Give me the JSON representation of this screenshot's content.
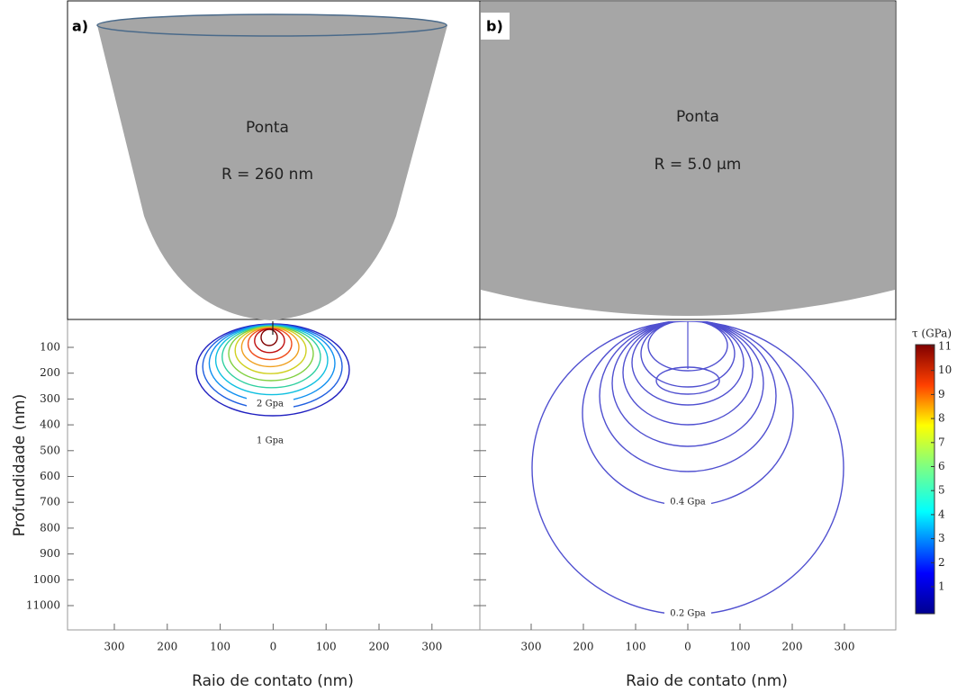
{
  "panels": [
    {
      "label": "a)",
      "tip_name": "Ponta",
      "tip_radius": "R = 260 nm",
      "contour_labels": [
        "2 Gpa",
        "1 Gpa"
      ],
      "x_ticks": [
        300,
        200,
        100,
        0,
        100,
        200,
        300
      ],
      "x_axis_label": "Raio de contato (nm)"
    },
    {
      "label": "b)",
      "tip_name": "Ponta",
      "tip_radius": "R = 5.0 µm",
      "contour_labels": [
        "0.4 Gpa",
        "0.2 Gpa"
      ],
      "x_ticks": [
        300,
        200,
        100,
        0,
        100,
        200,
        300
      ],
      "x_axis_label": "Raio de contato (nm)"
    }
  ],
  "y_axis": {
    "label": "Profundidade (nm)",
    "ticks": [
      100,
      200,
      300,
      400,
      500,
      600,
      700,
      800,
      900,
      1000,
      11000
    ]
  },
  "colorbar": {
    "title": "τ (GPa)",
    "ticks": [
      1,
      2,
      3,
      4,
      5,
      6,
      7,
      8,
      9,
      10,
      11
    ]
  }
}
